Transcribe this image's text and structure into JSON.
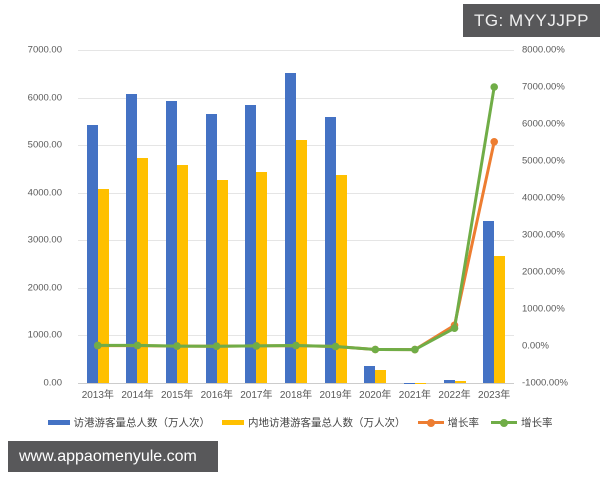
{
  "badge": {
    "text": "TG: MYYJJPP"
  },
  "watermark": {
    "text": "www.appaomenyule.com"
  },
  "chart_data": {
    "type": "combo-bar-line",
    "categories": [
      "2013年",
      "2014年",
      "2015年",
      "2016年",
      "2017年",
      "2018年",
      "2019年",
      "2020年",
      "2021年",
      "2022年",
      "2023年"
    ],
    "series": [
      {
        "name": "访港游客量总人数（万人次）",
        "type": "bar",
        "axis": "left",
        "color": "#4472c4",
        "values": [
          5430,
          6084,
          5931,
          5665,
          5847,
          6515,
          5591,
          357,
          9,
          60,
          3400
        ]
      },
      {
        "name": "内地访港游客量总人数（万人次）",
        "type": "bar",
        "axis": "left",
        "color": "#ffc000",
        "values": [
          4075,
          4725,
          4584,
          4278,
          4445,
          5104,
          4377,
          270,
          7,
          38,
          2676
        ]
      },
      {
        "name": "增长率",
        "type": "line",
        "axis": "right",
        "color": "#ed7d31",
        "values": [
          12,
          12,
          -2.5,
          -4.5,
          3.2,
          11.4,
          -14.2,
          -93.6,
          -97.4,
          560,
          5520
        ]
      },
      {
        "name": "增长率",
        "type": "line",
        "axis": "right",
        "color": "#70ad47",
        "values": [
          17,
          16,
          -3,
          -6.7,
          3.9,
          14.8,
          -14.2,
          -93.8,
          -97.6,
          480,
          7000
        ]
      }
    ],
    "left_axis": {
      "min": 0,
      "max": 7000,
      "step": 1000,
      "labels": [
        "7000.00",
        "6000.00",
        "5000.00",
        "4000.00",
        "3000.00",
        "2000.00",
        "1000.00",
        "0.00"
      ]
    },
    "right_axis": {
      "min": -1000,
      "max": 8000,
      "step": 1000,
      "labels": [
        "8000.00%",
        "7000.00%",
        "6000.00%",
        "5000.00%",
        "4000.00%",
        "3000.00%",
        "2000.00%",
        "1000.00%",
        "0.00%",
        "-1000.00%"
      ]
    },
    "grid": true,
    "legend_position": "bottom",
    "title": ""
  }
}
